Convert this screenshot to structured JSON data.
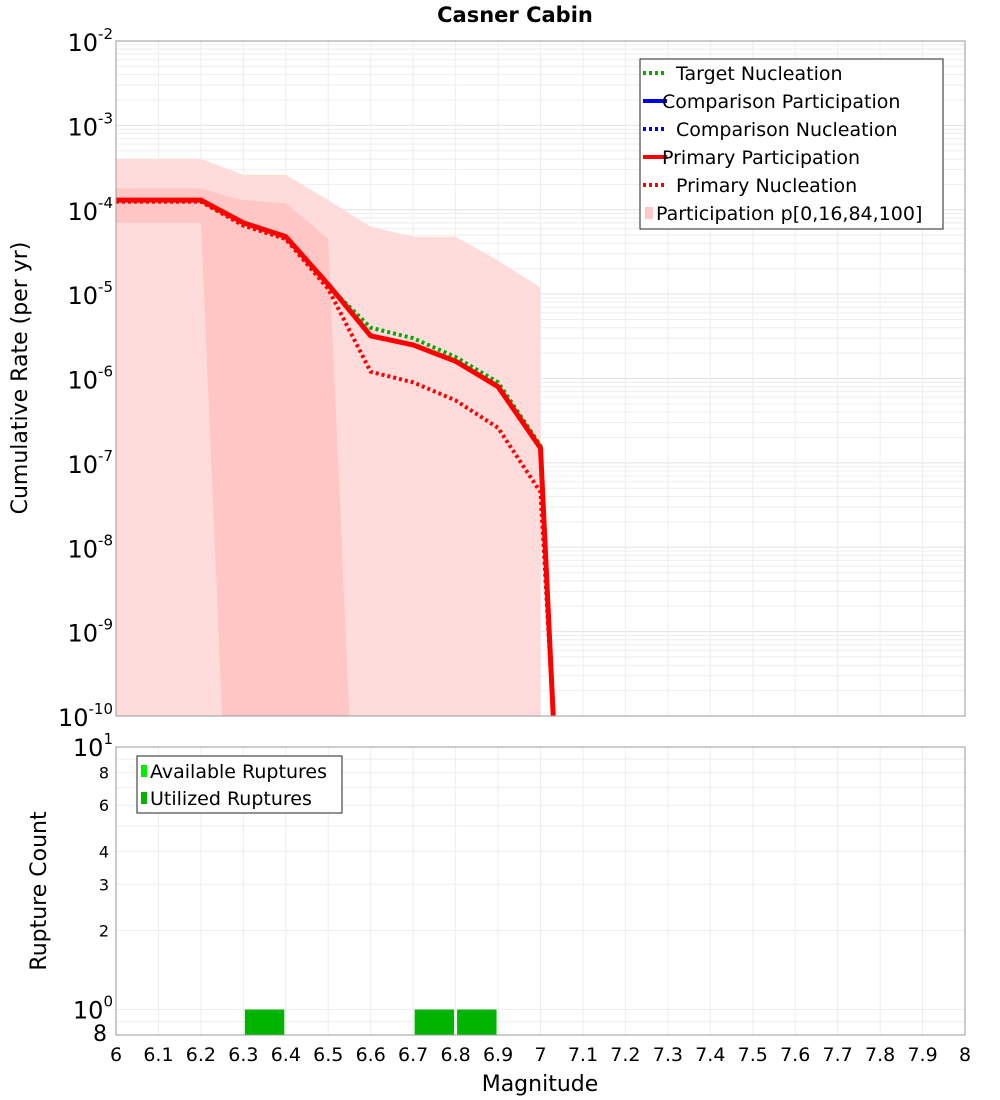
{
  "chart_data": [
    {
      "type": "line",
      "title": "Casner Cabin",
      "xlabel": "",
      "ylabel": "Cumulative Rate (per yr)",
      "xlim": [
        6,
        8
      ],
      "ylim": [
        1e-10,
        0.01
      ],
      "yscale": "log",
      "grid": true,
      "legend_position": "top-right",
      "y_tick_exponents": [
        "-2",
        "-3",
        "-4",
        "-5",
        "-6",
        "-7",
        "-8",
        "-9",
        "-10"
      ],
      "y_tick_base": "10",
      "legend": [
        {
          "label": "Target Nucleation",
          "color": "#00aa00",
          "style": "dotted"
        },
        {
          "label": "Comparison Participation",
          "color": "#0000ee",
          "style": "solid"
        },
        {
          "label": "Comparison Nucleation",
          "color": "#0000ee",
          "style": "dotted"
        },
        {
          "label": "Primary Participation",
          "color": "#ff0000",
          "style": "solid"
        },
        {
          "label": "Primary Nucleation",
          "color": "#ff0000",
          "style": "dotted"
        },
        {
          "label": "Participation p[0,16,84,100]",
          "color": "#ffc8c8",
          "style": "band"
        }
      ],
      "series": [
        {
          "name": "Target Nucleation",
          "color": "#00aa00",
          "style": "dotted",
          "x": [
            6.0,
            6.2,
            6.3,
            6.4,
            6.5,
            6.6,
            6.7,
            6.8,
            6.9,
            7.0,
            7.03
          ],
          "y": [
            0.000125,
            0.000125,
            6.5e-05,
            4.5e-05,
            1.25e-05,
            4e-06,
            3e-06,
            1.8e-06,
            9e-07,
            1.6e-07,
            1e-10
          ]
        },
        {
          "name": "Primary Nucleation",
          "color": "#ff0000",
          "style": "dotted",
          "x": [
            6.0,
            6.2,
            6.3,
            6.4,
            6.5,
            6.6,
            6.7,
            6.8,
            6.9,
            7.0,
            7.03
          ],
          "y": [
            0.000125,
            0.000125,
            6.5e-05,
            4.5e-05,
            1.15e-05,
            1.2e-06,
            9e-07,
            5.5e-07,
            2.6e-07,
            4.5e-08,
            1e-10
          ]
        },
        {
          "name": "Primary Participation",
          "color": "#ff0000",
          "style": "solid",
          "x": [
            6.0,
            6.2,
            6.3,
            6.4,
            6.5,
            6.6,
            6.7,
            6.8,
            6.9,
            7.0,
            7.03
          ],
          "y": [
            0.00013,
            0.00013,
            7e-05,
            4.8e-05,
            1.3e-05,
            3.2e-06,
            2.5e-06,
            1.6e-06,
            8e-07,
            1.5e-07,
            1e-10
          ]
        }
      ],
      "bands": [
        {
          "name": "Participation p0-p100",
          "color": "#ffdcdc",
          "x": [
            6.0,
            6.2,
            6.3,
            6.4,
            6.5,
            6.6,
            6.7,
            6.8,
            6.9,
            7.0
          ],
          "upper": [
            0.0004,
            0.0004,
            0.00026,
            0.00026,
            0.00013,
            6.3e-05,
            4.8e-05,
            4.8e-05,
            2.5e-05,
            1.2e-05
          ],
          "lower": [
            1e-10,
            1e-10,
            1e-10,
            1e-10,
            1e-10,
            1e-10,
            1e-10,
            1e-10,
            1e-10,
            1e-10
          ]
        },
        {
          "name": "Participation p16-p84",
          "color": "#ffc6c6",
          "x": [
            6.0,
            6.2,
            6.25,
            6.3,
            6.4,
            6.5,
            6.55
          ],
          "upper": [
            0.00018,
            0.00018,
            0.00015,
            0.00013,
            0.00012,
            4.5e-05,
            1e-10
          ],
          "lower": [
            7e-05,
            7e-05,
            1e-10,
            1e-10,
            1e-10,
            1e-10,
            1e-10
          ]
        }
      ]
    },
    {
      "type": "bar",
      "title": "",
      "xlabel": "Magnitude",
      "ylabel": "Rupture Count",
      "xlim": [
        6,
        8
      ],
      "ylim": [
        0.8,
        10
      ],
      "yscale": "log",
      "grid": true,
      "legend_position": "top-left",
      "x_ticks": [
        "6",
        "6.1",
        "6.2",
        "6.3",
        "6.4",
        "6.5",
        "6.6",
        "6.7",
        "6.8",
        "6.9",
        "7",
        "7.1",
        "7.2",
        "7.3",
        "7.4",
        "7.5",
        "7.6",
        "7.7",
        "7.8",
        "7.9",
        "8"
      ],
      "y_ticks": [
        {
          "value": 10,
          "base": "10",
          "exp": "1",
          "major": true
        },
        {
          "value": 8,
          "label": "8"
        },
        {
          "value": 6,
          "label": "6"
        },
        {
          "value": 4,
          "label": "4"
        },
        {
          "value": 3,
          "label": "3"
        },
        {
          "value": 2,
          "label": "2"
        },
        {
          "value": 1,
          "base": "10",
          "exp": "0",
          "major": true
        },
        {
          "value": 0.8,
          "label": "8",
          "major": true
        }
      ],
      "legend": [
        {
          "label": "Available Ruptures",
          "color": "#00ee00"
        },
        {
          "label": "Utilized Ruptures",
          "color": "#00b400"
        }
      ],
      "bars": [
        {
          "x0": 6.3,
          "x1": 6.4,
          "value": 1,
          "series": "Utilized Ruptures"
        },
        {
          "x0": 6.7,
          "x1": 6.8,
          "value": 1,
          "series": "Utilized Ruptures"
        },
        {
          "x0": 6.8,
          "x1": 6.9,
          "value": 1,
          "series": "Utilized Ruptures"
        }
      ]
    }
  ]
}
